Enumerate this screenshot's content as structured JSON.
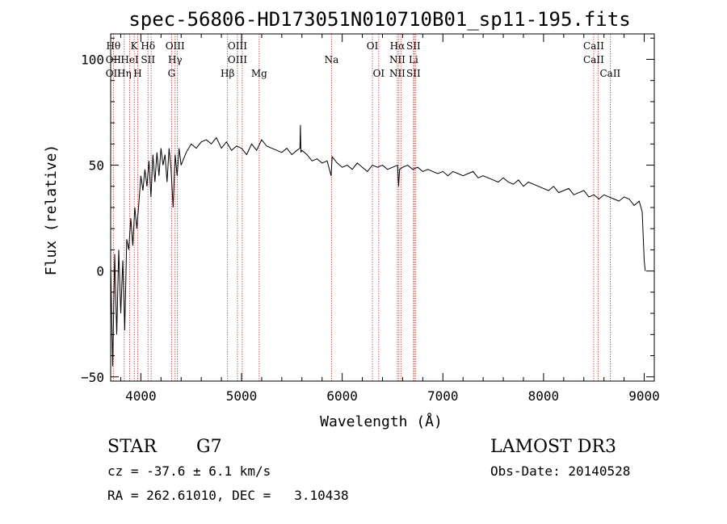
{
  "chart_data": {
    "type": "line",
    "title": "spec-56806-HD173051N010710B01_sp11-195.fits",
    "xlabel": "Wavelength (Å)",
    "ylabel": "Flux (relative)",
    "xlim": [
      3700,
      9100
    ],
    "ylim": [
      -52,
      112
    ],
    "x_ticks": [
      4000,
      5000,
      6000,
      7000,
      8000,
      9000
    ],
    "x_tick_labels": [
      "4000",
      "5000",
      "6000",
      "7000",
      "8000",
      "9000"
    ],
    "y_ticks": [
      -50,
      0,
      50,
      100
    ],
    "y_tick_labels": [
      "-50",
      "0",
      "50",
      "100"
    ],
    "grid": false,
    "series": [
      {
        "name": "flux",
        "x": [
          3700,
          3720,
          3740,
          3760,
          3780,
          3800,
          3820,
          3840,
          3860,
          3880,
          3900,
          3920,
          3940,
          3960,
          3980,
          4000,
          4020,
          4040,
          4060,
          4080,
          4100,
          4120,
          4140,
          4160,
          4180,
          4200,
          4220,
          4240,
          4260,
          4280,
          4300,
          4320,
          4340,
          4360,
          4380,
          4400,
          4450,
          4500,
          4550,
          4600,
          4650,
          4700,
          4750,
          4800,
          4850,
          4900,
          4950,
          5000,
          5050,
          5100,
          5150,
          5200,
          5250,
          5300,
          5350,
          5400,
          5450,
          5500,
          5550,
          5580,
          5585,
          5590,
          5600,
          5650,
          5700,
          5750,
          5800,
          5850,
          5890,
          5900,
          5950,
          6000,
          6050,
          6100,
          6150,
          6200,
          6250,
          6300,
          6350,
          6400,
          6450,
          6500,
          6550,
          6560,
          6570,
          6600,
          6650,
          6700,
          6750,
          6800,
          6850,
          6900,
          6950,
          7000,
          7050,
          7100,
          7150,
          7200,
          7250,
          7300,
          7350,
          7400,
          7450,
          7500,
          7550,
          7600,
          7650,
          7700,
          7750,
          7800,
          7850,
          7900,
          7950,
          8000,
          8050,
          8100,
          8150,
          8200,
          8250,
          8300,
          8350,
          8400,
          8450,
          8500,
          8550,
          8600,
          8650,
          8700,
          8750,
          8800,
          8850,
          8900,
          8950,
          8980,
          9000,
          9010
        ],
        "y": [
          3,
          -45,
          8,
          -30,
          10,
          -20,
          5,
          -28,
          15,
          10,
          25,
          12,
          30,
          20,
          32,
          45,
          38,
          48,
          40,
          52,
          35,
          55,
          42,
          56,
          45,
          58,
          50,
          55,
          42,
          58,
          48,
          30,
          55,
          45,
          58,
          50,
          56,
          60,
          58,
          61,
          62,
          60,
          63,
          58,
          61,
          57,
          59,
          58,
          55,
          60,
          57,
          62,
          59,
          58,
          57,
          56,
          58,
          55,
          57,
          58,
          69,
          56,
          57,
          55,
          52,
          53,
          51,
          52,
          45,
          54,
          51,
          49,
          50,
          48,
          51,
          49,
          47,
          50,
          49,
          50,
          48,
          49,
          50,
          40,
          48,
          49,
          50,
          48,
          49,
          47,
          48,
          47,
          46,
          47,
          45,
          47,
          46,
          45,
          46,
          47,
          44,
          45,
          44,
          43,
          42,
          44,
          42,
          41,
          43,
          40,
          42,
          41,
          40,
          39,
          38,
          40,
          37,
          38,
          39,
          36,
          37,
          38,
          35,
          36,
          34,
          36,
          35,
          34,
          33,
          35,
          34,
          31,
          33,
          28,
          5,
          0
        ]
      }
    ],
    "lines": [
      {
        "label_row1": "Hθ",
        "label_row2": "OII",
        "label_row3": "OII",
        "x": 3727
      },
      {
        "label_row1": "",
        "label_row2": "",
        "label_row3": "Hη",
        "x": 3835
      },
      {
        "label_row1": "",
        "label_row2": "HeI",
        "label_row3": "",
        "x": 3889
      },
      {
        "label_row1": "K",
        "label_row2": "",
        "label_row3": "",
        "x": 3934
      },
      {
        "label_row1": "",
        "label_row2": "",
        "label_row3": "H",
        "x": 3969
      },
      {
        "label_row1": "Hδ",
        "label_row2": "SII",
        "label_row3": "",
        "x": 4071
      },
      {
        "label_row1": "",
        "label_row2": "",
        "label_row3": "",
        "x": 4102
      },
      {
        "label_row1": "",
        "label_row2": "",
        "label_row3": "G",
        "x": 4305
      },
      {
        "label_row1": "OIII",
        "label_row2": "Hγ",
        "label_row3": "",
        "x": 4340
      },
      {
        "label_row1": "",
        "label_row2": "",
        "label_row3": "",
        "x": 4363
      },
      {
        "label_row1": "",
        "label_row2": "",
        "label_row3": "Hβ",
        "x": 4861
      },
      {
        "label_row1": "OIII",
        "label_row2": "OIII",
        "label_row3": "",
        "x": 4959
      },
      {
        "label_row1": "",
        "label_row2": "",
        "label_row3": "",
        "x": 5007
      },
      {
        "label_row1": "",
        "label_row2": "",
        "label_row3": "Mg",
        "x": 5175
      },
      {
        "label_row1": "",
        "label_row2": "Na",
        "label_row3": "",
        "x": 5894
      },
      {
        "label_row1": "OI",
        "label_row2": "",
        "label_row3": "",
        "x": 6300
      },
      {
        "label_row1": "",
        "label_row2": "",
        "label_row3": "OI",
        "x": 6363
      },
      {
        "label_row1": "Hα",
        "label_row2": "NII",
        "label_row3": "NII",
        "x": 6548
      },
      {
        "label_row1": "",
        "label_row2": "",
        "label_row3": "",
        "x": 6563
      },
      {
        "label_row1": "",
        "label_row2": "",
        "label_row3": "",
        "x": 6583
      },
      {
        "label_row1": "SII",
        "label_row2": "Li",
        "label_row3": "SII",
        "x": 6708
      },
      {
        "label_row1": "",
        "label_row2": "",
        "label_row3": "",
        "x": 6716
      },
      {
        "label_row1": "",
        "label_row2": "",
        "label_row3": "",
        "x": 6731
      },
      {
        "label_row1": "CaII",
        "label_row2": "CaII",
        "label_row3": "",
        "x": 8498
      },
      {
        "label_row1": "",
        "label_row2": "",
        "label_row3": "",
        "x": 8542
      },
      {
        "label_row1": "",
        "label_row2": "",
        "label_row3": "CaII",
        "x": 8662
      }
    ]
  },
  "info": {
    "object_class": "STAR",
    "subclass": "G7",
    "survey": "LAMOST DR3",
    "cz": "cz = -37.6 ± 6.1 km/s",
    "obs_date": "Obs-Date: 20140528",
    "coords": "RA = 262.61010, DEC =   3.10438"
  },
  "colors": {
    "line_marker": "#cc3333",
    "spectrum": "#000000",
    "axes": "#000000"
  }
}
